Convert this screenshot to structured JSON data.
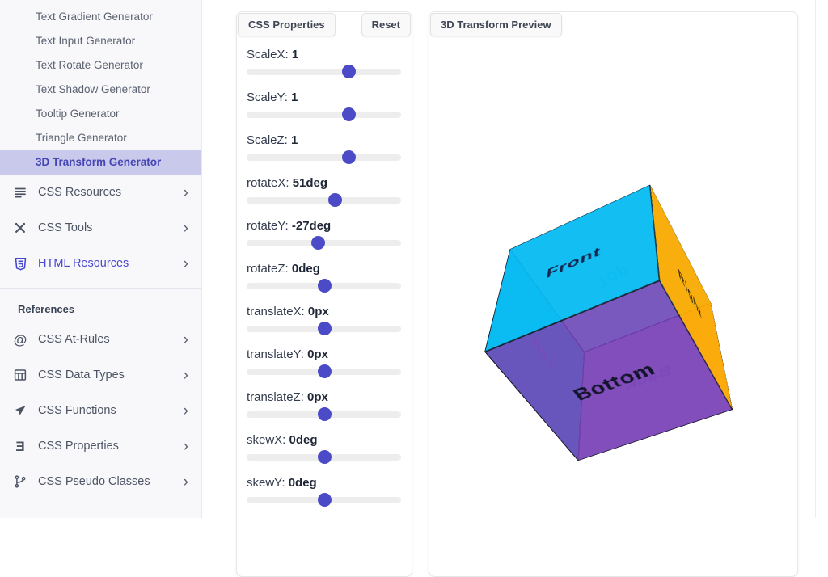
{
  "sidebar": {
    "subitems": [
      {
        "label": "Text Gradient Generator",
        "active": false
      },
      {
        "label": "Text Input Generator",
        "active": false
      },
      {
        "label": "Text Rotate Generator",
        "active": false
      },
      {
        "label": "Text Shadow Generator",
        "active": false
      },
      {
        "label": "Tooltip Generator",
        "active": false
      },
      {
        "label": "Triangle Generator",
        "active": false
      },
      {
        "label": "3D Transform Generator",
        "active": true
      }
    ],
    "sections": [
      {
        "icon": "menu-icon",
        "label": "CSS Resources",
        "link": false
      },
      {
        "icon": "tools-icon",
        "label": "CSS Tools",
        "link": false
      },
      {
        "icon": "html5-icon",
        "label": "HTML Resources",
        "link": true
      }
    ],
    "references_heading": "References",
    "references": [
      {
        "icon": "at-icon",
        "label": "CSS At-Rules"
      },
      {
        "icon": "table-icon",
        "label": "CSS Data Types"
      },
      {
        "icon": "functions-icon",
        "label": "CSS Functions"
      },
      {
        "icon": "css3-icon",
        "label": "CSS Properties"
      },
      {
        "icon": "branch-icon",
        "label": "CSS Pseudo Classes"
      }
    ],
    "chevron": "›"
  },
  "properties_panel": {
    "title": "CSS Properties",
    "reset_label": "Reset",
    "sliders": [
      {
        "label": "ScaleX:",
        "value": "1",
        "percent": 66
      },
      {
        "label": "ScaleY:",
        "value": "1",
        "percent": 66
      },
      {
        "label": "ScaleZ:",
        "value": "1",
        "percent": 66
      },
      {
        "label": "rotateX:",
        "value": "51deg",
        "percent": 57
      },
      {
        "label": "rotateY:",
        "value": "-27deg",
        "percent": 46
      },
      {
        "label": "rotateZ:",
        "value": "0deg",
        "percent": 50
      },
      {
        "label": "translateX:",
        "value": "0px",
        "percent": 50
      },
      {
        "label": "translateY:",
        "value": "0px",
        "percent": 50
      },
      {
        "label": "translateZ:",
        "value": "0px",
        "percent": 50
      },
      {
        "label": "skewX:",
        "value": "0deg",
        "percent": 50
      },
      {
        "label": "skewY:",
        "value": "0deg",
        "percent": 50
      }
    ]
  },
  "preview_panel": {
    "title": "3D Transform Preview",
    "cube_transform": "scaleX(1) scaleY(1) scaleZ(1) rotateX(51deg) rotateY(-27deg) rotateZ(0deg) translateX(0px) translateY(0px) translateZ(0px) skewX(0deg) skewY(0deg)",
    "cube_faces": [
      {
        "name": "front",
        "label": "Front",
        "color": "rgba(10,185,243,0.93)",
        "label_color": "#16254d"
      },
      {
        "name": "back",
        "label": "Back",
        "color": "rgba(155,89,208,0.55)",
        "label_color": "#9c7fd4"
      },
      {
        "name": "right",
        "label": "Right",
        "color": "rgba(253,171,0,0.95)",
        "label_color": "#3a2a05"
      },
      {
        "name": "left",
        "label": "Left",
        "color": "rgba(0,215,228,0.90)",
        "label_color": "#8f7fd0"
      },
      {
        "name": "top",
        "label": "Top",
        "color": "rgba(0,226,219,0.45)",
        "label_color": "#35d9de"
      },
      {
        "name": "bottom",
        "label": "Bottom",
        "color": "rgba(118,62,181,0.85)",
        "label_color": "#12142a"
      }
    ]
  },
  "colors": {
    "accent": "#4b4bc8",
    "active_item_bg": "#c9c9ec",
    "active_item_text": "#4546b5",
    "link_text": "#4848cc",
    "sidebar_bg": "#f8f8fb"
  }
}
